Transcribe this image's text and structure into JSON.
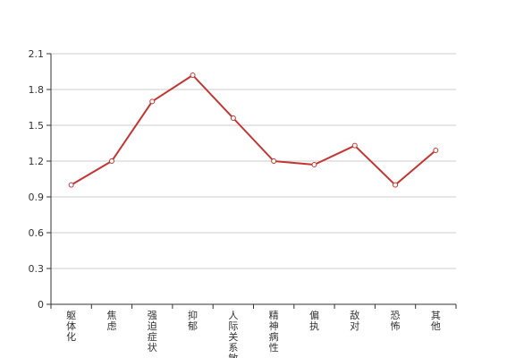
{
  "chart_data": {
    "type": "line",
    "categories": [
      "躯体化",
      "焦虑",
      "强迫症状",
      "抑郁",
      "人际关系敏感",
      "精神病性",
      "偏执",
      "敌对",
      "恐怖",
      "其他"
    ],
    "series": [
      {
        "values": [
          1.0,
          1.2,
          1.7,
          1.92,
          1.56,
          1.2,
          1.17,
          1.33,
          1.0,
          1.29
        ]
      }
    ],
    "ylim": [
      0,
      2.1
    ],
    "yticks": [
      "0",
      "0.3",
      "0.6",
      "0.9",
      "1.2",
      "1.5",
      "1.8",
      "2.1"
    ],
    "grid": true,
    "line_color": "#c23531",
    "marker_fill": "#ffffff"
  }
}
